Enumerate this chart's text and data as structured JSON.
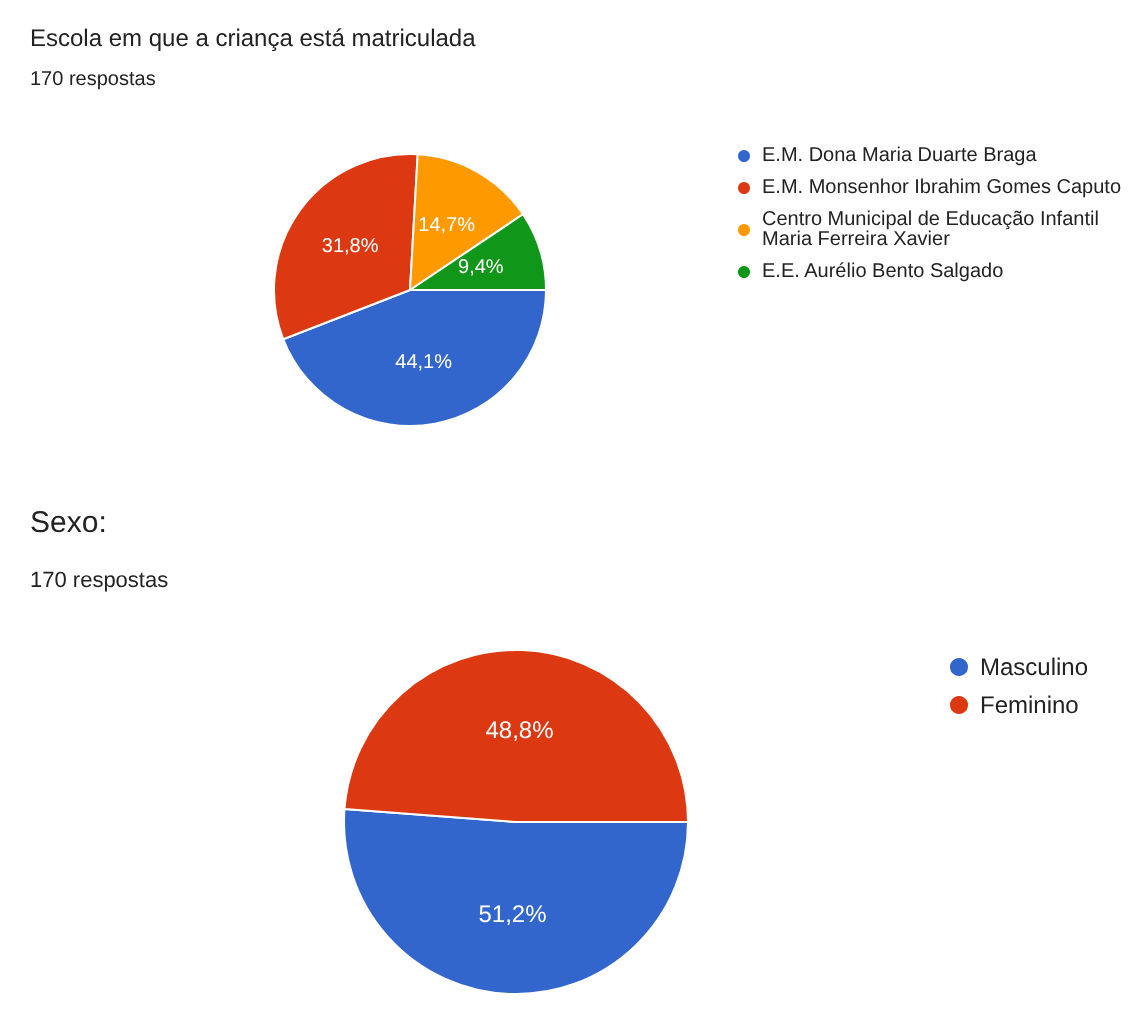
{
  "chart_data": [
    {
      "type": "pie",
      "title": "Escola em que a criança está matriculada",
      "subtitle": "170 respostas",
      "categories": [
        "E.M. Dona Maria Duarte Braga",
        "E.M. Monsenhor Ibrahim Gomes Caputo",
        "Centro Municipal de Educação Infantil Maria Ferreira Xavier",
        "E.E. Aurélio Bento Salgado"
      ],
      "values": [
        44.1,
        31.8,
        14.7,
        9.4
      ],
      "colors": [
        "#3366cc",
        "#dc3912",
        "#ff9900",
        "#109618"
      ],
      "value_labels": [
        "44,1%",
        "31,8%",
        "14,7%",
        "9,4%"
      ],
      "legend": "right"
    },
    {
      "type": "pie",
      "title": "Sexo:",
      "subtitle": "170 respostas",
      "categories": [
        "Masculino",
        "Feminino"
      ],
      "values": [
        51.2,
        48.8
      ],
      "colors": [
        "#3366cc",
        "#dc3912"
      ],
      "value_labels": [
        "51,2%",
        "48,8%"
      ],
      "legend": "right"
    }
  ]
}
